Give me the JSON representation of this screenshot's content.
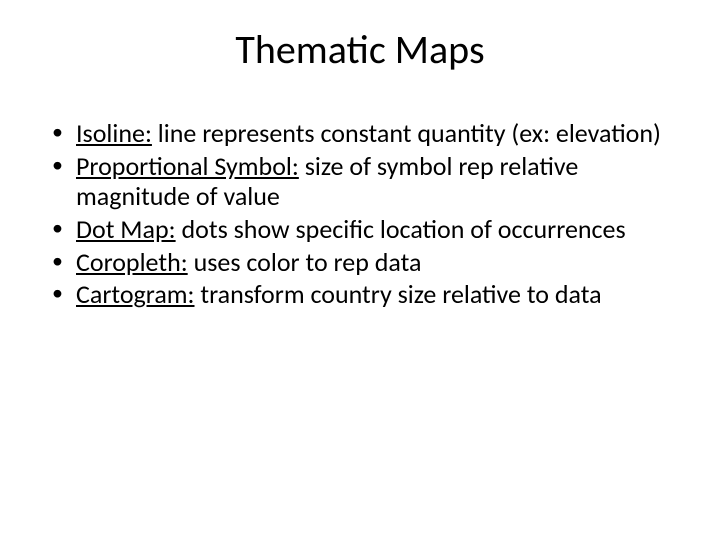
{
  "slide": {
    "title": "Thematic Maps",
    "title_fontsize": 40,
    "body_fontsize": 26,
    "background_color": "#ffffff",
    "text_color": "#000000",
    "font_family": "Calibri",
    "bullets": [
      {
        "term": "Isoline:",
        "definition": " line represents constant quantity (ex: elevation)"
      },
      {
        "term": "Proportional Symbol:",
        "definition": " size of symbol rep relative magnitude of value"
      },
      {
        "term": "Dot Map:",
        "definition": " dots show specific location of occurrences"
      },
      {
        "term": "Coropleth:",
        "definition": " uses color to rep data"
      },
      {
        "term": "Cartogram:",
        "definition": " transform country size relative to data"
      }
    ]
  }
}
